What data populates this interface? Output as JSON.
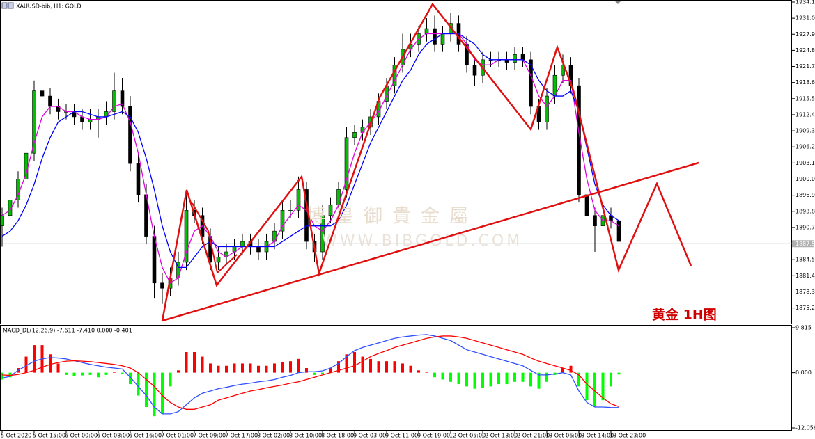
{
  "chart_data": [
    {
      "type": "candlestick",
      "title": "XAUUSD-bib, H1:  GOLD",
      "annotation": "黄金 1H图",
      "watermark": "博皇御貴金屬",
      "watermark_url": "WWW.BIBGOLD.COM",
      "categories": [
        "5 Oct 2020",
        null,
        null,
        null,
        "5 Oct 15:00",
        null,
        null,
        null,
        "6 Oct 00:00",
        null,
        null,
        null,
        "6 Oct 08:00",
        null,
        null,
        null,
        "6 Oct 16:00",
        null,
        null,
        null,
        "7 Oct 01:00",
        null,
        null,
        null,
        "7 Oct 09:00",
        null,
        null,
        null,
        "7 Oct 17:00",
        null,
        null,
        null,
        "8 Oct 02:00",
        null,
        null,
        null,
        "8 Oct 10:00",
        null,
        null,
        null,
        "8 Oct 18:00",
        null,
        null,
        null,
        "9 Oct 03:00",
        null,
        null,
        null,
        "9 Oct 11:00",
        null,
        null,
        null,
        "9 Oct 19:00",
        null,
        null,
        null,
        "12 Oct 05:00",
        null,
        null,
        null,
        "12 Oct 13:00",
        null,
        null,
        null,
        "12 Oct 21:00",
        null,
        null,
        null,
        "13 Oct 06:00",
        null,
        null,
        null,
        "13 Oct 14:00",
        null,
        null,
        null,
        "13 Oct 23:00",
        null
      ],
      "open": [
        1891,
        1893,
        1896,
        1900,
        1905,
        1917,
        1916,
        1914,
        1913,
        1913,
        1912,
        1911,
        1911.5,
        1912,
        1913,
        1917,
        1914,
        1903,
        1897,
        1889,
        1880,
        1879,
        1881,
        1884,
        1894,
        1893,
        1889,
        1884,
        1885,
        1886,
        1887,
        1888,
        1887,
        1886,
        1888,
        1890,
        1894,
        1894,
        1898,
        1888,
        1886,
        1893,
        1895,
        1898,
        1908,
        1909,
        1910,
        1912,
        1915,
        1918,
        1922,
        1925,
        1926,
        1928,
        1929,
        1926,
        1928,
        1930,
        1926,
        1922,
        1920,
        1923,
        1923,
        1923,
        1922.5,
        1924,
        1923,
        1914,
        1911,
        1916,
        1920,
        1922,
        1918,
        1897,
        1893,
        1891,
        1893,
        1892
      ],
      "high": [
        1894.5,
        1897.5,
        1901.5,
        1906.5,
        1919,
        1918.5,
        1917.5,
        1915.5,
        1914.5,
        1914.5,
        1913.5,
        1913.5,
        1913.5,
        1915,
        1920.5,
        1919.5,
        1916,
        1905,
        1899,
        1891,
        1882,
        1883,
        1886,
        1897.5,
        1896,
        1894.5,
        1890.5,
        1887,
        1887.5,
        1888.5,
        1889.5,
        1889.5,
        1888.5,
        1889.5,
        1891.5,
        1896,
        1896,
        1900.5,
        1899.5,
        1889.5,
        1895,
        1896.5,
        1899.5,
        1910,
        1910.5,
        1911.5,
        1913.5,
        1916.5,
        1919.5,
        1923.5,
        1928,
        1928,
        1929.5,
        1931,
        1931.5,
        1929.5,
        1932,
        1931.5,
        1927.5,
        1923.5,
        1924.5,
        1924.5,
        1924.5,
        1924.5,
        1925.5,
        1925.5,
        1924.5,
        1915.5,
        1917.5,
        1922,
        1924,
        1923.5,
        1919.5,
        1898.5,
        1894.5,
        1894.5,
        1894.5,
        1893.5
      ],
      "low": [
        1887,
        1891.5,
        1894.5,
        1898.5,
        1903.5,
        1914.5,
        1912.5,
        1911.5,
        1911.5,
        1910.5,
        1909.5,
        1909.5,
        1908,
        1910.5,
        1911.5,
        1912.5,
        1901.5,
        1895.5,
        1887.5,
        1877,
        1876,
        1877.5,
        1879.5,
        1882.5,
        1891.5,
        1887.5,
        1882.5,
        1882.5,
        1883.5,
        1884.5,
        1885.5,
        1885.5,
        1884.5,
        1884.5,
        1886.5,
        1888.5,
        1892.5,
        1892.5,
        1886.5,
        1884,
        1884.5,
        1891.5,
        1893.5,
        1896.5,
        1906.5,
        1907.5,
        1908.5,
        1910.5,
        1913.5,
        1916.5,
        1920.5,
        1923.5,
        1924.5,
        1926.5,
        1924.5,
        1924.5,
        1926.5,
        1924.5,
        1920.5,
        1918,
        1918.5,
        1921.5,
        1921.5,
        1921,
        1921,
        1921.5,
        1912.5,
        1909.5,
        1909.5,
        1914.5,
        1918.5,
        1916.5,
        1895.5,
        1891.5,
        1886,
        1889.5,
        1890.5,
        1886
      ],
      "close": [
        1893,
        1896,
        1900,
        1905,
        1917,
        1916,
        1914,
        1913,
        1913,
        1912,
        1911,
        1911.5,
        1912,
        1913,
        1917,
        1914,
        1903,
        1897,
        1889,
        1880,
        1879,
        1881,
        1884,
        1894,
        1893,
        1889,
        1884,
        1885,
        1886,
        1887,
        1888,
        1887,
        1886,
        1888,
        1890,
        1894,
        1894,
        1898,
        1888,
        1886,
        1893,
        1895,
        1898,
        1908,
        1909,
        1910,
        1912,
        1915,
        1918,
        1922,
        1925,
        1926,
        1928,
        1929,
        1926,
        1928,
        1930,
        1926,
        1922,
        1920,
        1923,
        1923,
        1923,
        1922.5,
        1924,
        1923,
        1914,
        1911,
        1916,
        1920,
        1922,
        1918,
        1897,
        1893,
        1891,
        1893,
        1892,
        1888
      ],
      "up_color": "#00c000",
      "down_color": "#000000",
      "series": [
        {
          "color": "#e000e0",
          "values": [
            1893,
            1894,
            1897,
            1901,
            1907,
            1912,
            1914,
            1914,
            1913,
            1913,
            1912,
            1911.5,
            1911.5,
            1912,
            1914,
            1914.5,
            1911,
            1905,
            1897,
            1889,
            1883,
            1880,
            1881,
            1886,
            1890,
            1891,
            1889,
            1886,
            1885,
            1886,
            1887,
            1887,
            1887,
            1887,
            1888,
            1891,
            1893,
            1895,
            1894,
            1891,
            1890,
            1892,
            1895,
            1900,
            1905,
            1909,
            1911,
            1913,
            1916,
            1919,
            1922,
            1925,
            1927,
            1928,
            1928,
            1928,
            1928,
            1928,
            1926,
            1923,
            1922,
            1922,
            1923,
            1923,
            1923,
            1923,
            1920,
            1916,
            1914,
            1916,
            1919,
            1919,
            1909,
            1900,
            1894,
            1892,
            1892,
            1891
          ]
        },
        {
          "color": "#0000ff",
          "values": [
            1889,
            1890,
            1892,
            1895,
            1899,
            1904,
            1908,
            1911,
            1912,
            1913,
            1913,
            1912.5,
            1912,
            1912,
            1912.5,
            1913,
            1912,
            1909,
            1904,
            1898,
            1891,
            1886,
            1883,
            1883,
            1885,
            1887,
            1888,
            1887,
            1887,
            1887,
            1887,
            1887,
            1887,
            1887,
            1887,
            1888,
            1889,
            1890,
            1891,
            1891,
            1891,
            1891,
            1892,
            1895,
            1899,
            1903,
            1907,
            1910,
            1913,
            1916,
            1919,
            1921,
            1924,
            1926,
            1927,
            1928,
            1928,
            1928,
            1927,
            1926,
            1924,
            1923,
            1923,
            1923,
            1923,
            1923,
            1922,
            1919,
            1917,
            1916,
            1916,
            1917,
            1913,
            1906,
            1899,
            1895,
            1893,
            1892
          ]
        }
      ],
      "current_price": 1887.57,
      "ylim": [
        1872.2,
        1934.5
      ],
      "yticks": [
        {
          "value": 1934.1,
          "label": "1934.10"
        },
        {
          "value": 1931,
          "label": "1931.00"
        },
        {
          "value": 1927.9,
          "label": "1927.90"
        },
        {
          "value": 1924.8,
          "label": "1924.80"
        },
        {
          "value": 1921.7,
          "label": "1921.70"
        },
        {
          "value": 1918.6,
          "label": "1918.60"
        },
        {
          "value": 1915.5,
          "label": "1915.50"
        },
        {
          "value": 1912.4,
          "label": "1912.40"
        },
        {
          "value": 1909.3,
          "label": "1909.30"
        },
        {
          "value": 1906.2,
          "label": "1906.20"
        },
        {
          "value": 1903.1,
          "label": "1903.10"
        },
        {
          "value": 1900,
          "label": "1900.00"
        },
        {
          "value": 1896.9,
          "label": "1896.90"
        },
        {
          "value": 1893.8,
          "label": "1893.80"
        },
        {
          "value": 1890.7,
          "label": "1890.70"
        },
        {
          "value": 1884.5,
          "label": "1884.50"
        },
        {
          "value": 1881.4,
          "label": "1881.40"
        },
        {
          "value": 1878.3,
          "label": "1878.30"
        },
        {
          "value": 1875.2,
          "label": "1875.20"
        }
      ]
    },
    {
      "type": "macd",
      "title": "MACD_DL(12,26,9) -7.611 -7.410 0.000 -0.401",
      "histogram": {
        "up_color": "#ff0000",
        "down_color": "#00ff00",
        "values": [
          -1.5,
          -1,
          1,
          3.5,
          6,
          6,
          4,
          2,
          -0.5,
          -0.8,
          -0.6,
          -0.5,
          -1,
          -0.5,
          0.2,
          -0.3,
          -2.5,
          -5,
          -7.5,
          -9.5,
          -9,
          -3,
          0.5,
          4.5,
          4.5,
          3.5,
          2,
          1.5,
          1.5,
          2,
          2,
          2,
          1.5,
          1.5,
          2,
          2.3,
          2.5,
          3,
          1,
          -0.5,
          -0.3,
          1,
          2.5,
          4,
          4.5,
          3.5,
          3,
          2.5,
          2.5,
          2.5,
          2,
          1.5,
          0.5,
          0.2,
          -1,
          -1.5,
          -2,
          -2.5,
          -3,
          -3.5,
          -3.3,
          -3,
          -2.5,
          -2.5,
          -2,
          -2,
          -3,
          -3.5,
          -2,
          -0.5,
          1,
          1.5,
          -3,
          -6,
          -7.5,
          -6,
          -3,
          -0.401
        ]
      },
      "series": [
        {
          "color": "#3050ff",
          "values": [
            -1.2,
            -0.8,
            0.5,
            1.5,
            2.5,
            3,
            3.3,
            3.2,
            3,
            2.6,
            2.2,
            1.8,
            1.5,
            1.2,
            1,
            0.8,
            -1,
            -3,
            -5,
            -7.5,
            -9,
            -9,
            -8.5,
            -7,
            -5.5,
            -4.5,
            -4,
            -3.5,
            -3.2,
            -2.8,
            -2.5,
            -2.3,
            -2,
            -1.8,
            -1.5,
            -1,
            -0.6,
            0,
            0.2,
            0.2,
            0.4,
            1,
            2,
            3.5,
            4.8,
            5.5,
            6,
            6.5,
            7,
            7.5,
            7.8,
            8,
            8.2,
            8.3,
            8,
            7.5,
            7,
            6,
            5,
            4.5,
            4,
            3.5,
            3,
            2.5,
            2,
            1.5,
            0.5,
            -0.5,
            -0.5,
            -0.3,
            0,
            -0.5,
            -4,
            -6.5,
            -7.5,
            -7.5,
            -7.6,
            -7.611
          ]
        },
        {
          "color": "#ff0000",
          "values": [
            -0.5,
            -0.6,
            -0.4,
            0,
            0.5,
            1.2,
            1.8,
            2.2,
            2.5,
            2.6,
            2.5,
            2.4,
            2.2,
            2,
            1.8,
            1.5,
            1,
            0,
            -1.5,
            -3,
            -5,
            -6.5,
            -7.5,
            -8,
            -8,
            -7.5,
            -7,
            -6,
            -5.5,
            -5,
            -4.5,
            -4,
            -3.7,
            -3.3,
            -3,
            -2.7,
            -2.3,
            -2,
            -1.5,
            -1,
            -0.5,
            0,
            0.5,
            1,
            1.5,
            2.5,
            3.5,
            4.2,
            4.8,
            5.5,
            6,
            6.5,
            7,
            7.5,
            7.8,
            8,
            8,
            7.8,
            7.5,
            7,
            6.5,
            6,
            5.5,
            5,
            4.5,
            4,
            3.2,
            2.5,
            2,
            1.5,
            1,
            0.5,
            -0.5,
            -2.5,
            -4,
            -5.5,
            -6.8,
            -7.41
          ]
        }
      ],
      "ylim": [
        -12.51,
        10.42
      ],
      "yticks": [
        9.815,
        {
          "value": 0,
          "label": "0.000"
        },
        -12.056
      ]
    }
  ]
}
